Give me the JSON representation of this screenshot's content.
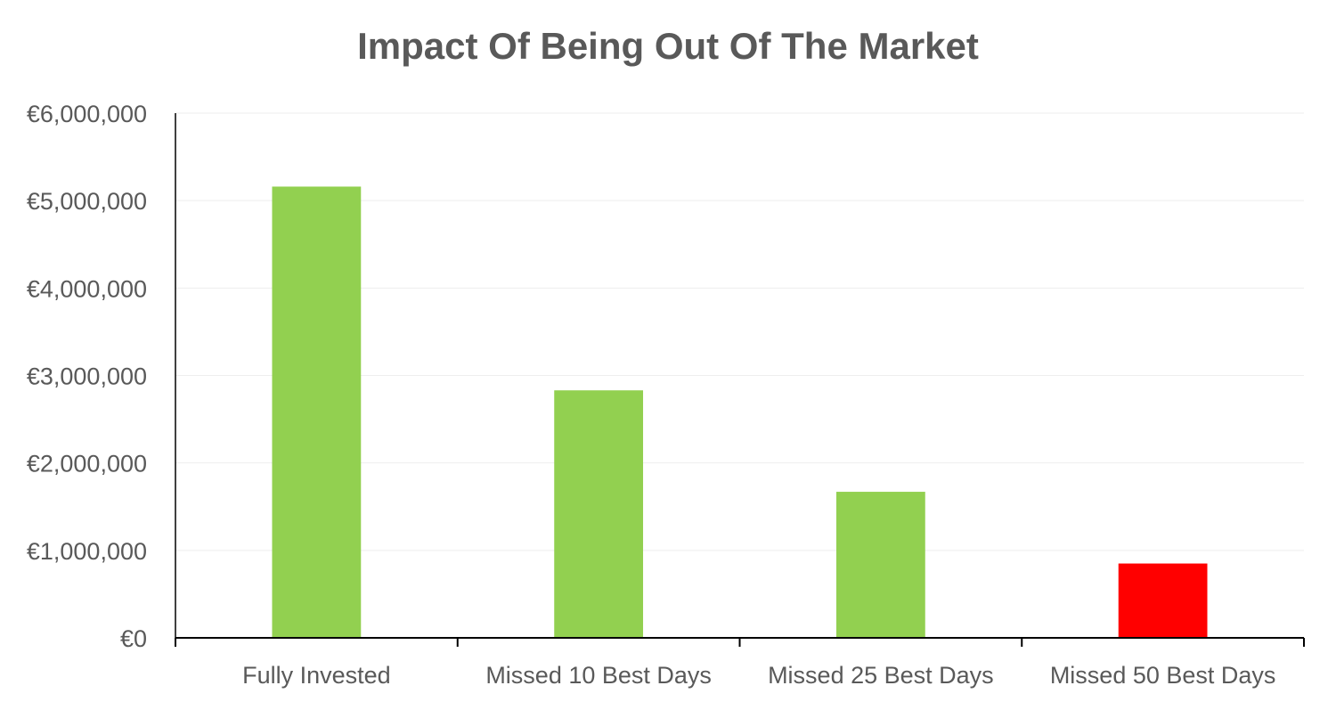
{
  "chart_data": {
    "type": "bar",
    "title": "Impact Of Being Out Of The Market",
    "xlabel": "",
    "ylabel": "",
    "categories": [
      "Fully Invested",
      "Missed 10 Best Days",
      "Missed 25 Best Days",
      "Missed 50 Best Days"
    ],
    "values": [
      5160000,
      2830000,
      1670000,
      850000
    ],
    "bar_colors": [
      "#92d050",
      "#92d050",
      "#92d050",
      "#ff0000"
    ],
    "ylim": [
      0,
      6000000
    ],
    "yticks": [
      0,
      1000000,
      2000000,
      3000000,
      4000000,
      5000000,
      6000000
    ],
    "ytick_labels": [
      "€0",
      "€1,000,000",
      "€2,000,000",
      "€3,000,000",
      "€4,000,000",
      "€5,000,000",
      "€6,000,000"
    ],
    "grid": true,
    "legend": "none"
  }
}
